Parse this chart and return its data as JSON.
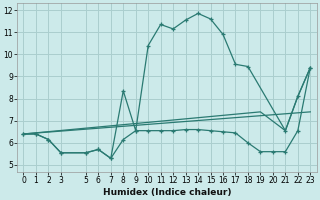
{
  "xlabel": "Humidex (Indice chaleur)",
  "background_color": "#cceaea",
  "grid_color": "#aacece",
  "line_color": "#2a7a72",
  "xlim": [
    -0.5,
    23.5
  ],
  "ylim": [
    4.7,
    12.3
  ],
  "xticks": [
    0,
    1,
    2,
    3,
    5,
    6,
    7,
    8,
    9,
    10,
    11,
    12,
    13,
    14,
    15,
    16,
    17,
    18,
    19,
    20,
    21,
    22,
    23
  ],
  "yticks": [
    5,
    6,
    7,
    8,
    9,
    10,
    11,
    12
  ],
  "lines": [
    {
      "x": [
        0,
        1,
        2,
        3,
        5,
        6,
        7,
        8,
        9,
        10,
        11,
        12,
        13,
        14,
        15,
        16,
        17,
        18,
        21,
        22,
        23
      ],
      "y": [
        6.4,
        6.4,
        6.15,
        5.55,
        5.55,
        5.7,
        5.3,
        8.35,
        6.55,
        10.4,
        11.35,
        11.15,
        11.55,
        11.85,
        11.6,
        10.9,
        9.55,
        9.45,
        6.55,
        8.1,
        9.4
      ],
      "markers": true
    },
    {
      "x": [
        0,
        1,
        2,
        3,
        5,
        6,
        7,
        8,
        9,
        10,
        11,
        12,
        13,
        14,
        15,
        16,
        17,
        18,
        19,
        20,
        21,
        22,
        23
      ],
      "y": [
        6.4,
        6.4,
        6.15,
        5.55,
        5.55,
        5.7,
        5.3,
        6.15,
        6.55,
        6.55,
        6.55,
        6.55,
        6.6,
        6.6,
        6.55,
        6.5,
        6.45,
        6.0,
        5.6,
        5.6,
        5.6,
        6.55,
        9.4
      ],
      "markers": true
    },
    {
      "x": [
        0,
        19,
        21,
        22,
        23
      ],
      "y": [
        6.4,
        7.4,
        6.55,
        8.1,
        9.4
      ],
      "markers": false
    },
    {
      "x": [
        0,
        23
      ],
      "y": [
        6.4,
        7.4
      ],
      "markers": false
    }
  ]
}
